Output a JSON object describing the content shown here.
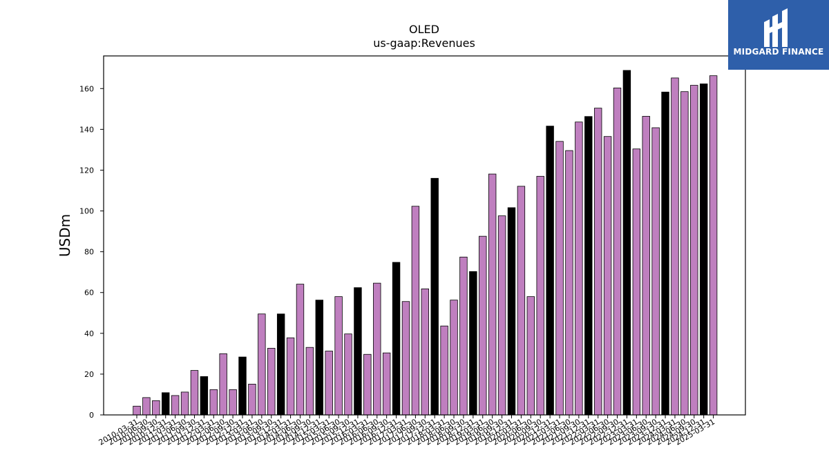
{
  "chart_data": {
    "type": "bar",
    "title": "OLED",
    "subtitle": "us-gaap:Revenues",
    "ylabel": "USDm",
    "xlabel": "",
    "ylim": [
      0,
      176
    ],
    "yticks": [
      0,
      20,
      40,
      60,
      80,
      100,
      120,
      140,
      160
    ],
    "grid": false,
    "colors": {
      "quarter": "#bf7fbf",
      "fiscal_year_end": "#000000",
      "edge": "#000000"
    },
    "categories": [
      "2010-03-31",
      "2010-06-30",
      "2010-09-30",
      "2010-12-31",
      "2011-03-31",
      "2011-06-30",
      "2011-09-30",
      "2011-12-31",
      "2012-03-31",
      "2012-06-30",
      "2012-09-30",
      "2012-12-31",
      "2013-03-31",
      "2013-06-30",
      "2013-09-30",
      "2013-12-31",
      "2014-03-31",
      "2014-06-30",
      "2014-09-30",
      "2014-12-31",
      "2015-03-31",
      "2015-06-30",
      "2015-09-30",
      "2015-12-31",
      "2016-03-31",
      "2016-06-30",
      "2016-09-30",
      "2016-12-31",
      "2017-03-31",
      "2017-06-30",
      "2017-09-30",
      "2017-12-31",
      "2018-03-31",
      "2018-06-30",
      "2018-09-30",
      "2018-12-31",
      "2019-03-31",
      "2019-06-30",
      "2019-09-30",
      "2019-12-31",
      "2020-03-31",
      "2020-06-30",
      "2020-09-30",
      "2020-12-31",
      "2021-03-31",
      "2021-06-30",
      "2021-09-30",
      "2021-12-31",
      "2022-03-31",
      "2022-06-30",
      "2022-09-30",
      "2022-12-31",
      "2023-03-31",
      "2023-06-30",
      "2023-09-30",
      "2023-12-31",
      "2024-03-31",
      "2024-06-30",
      "2024-09-30",
      "2024-12-31",
      "2025-03-31"
    ],
    "values": [
      4.3,
      8.5,
      7.0,
      10.9,
      9.5,
      11.2,
      21.8,
      18.8,
      12.4,
      30.0,
      12.4,
      28.4,
      15.1,
      49.5,
      32.7,
      49.5,
      37.8,
      64.1,
      33.1,
      56.3,
      31.3,
      58.0,
      39.7,
      62.4,
      29.7,
      64.6,
      30.4,
      74.8,
      55.6,
      102.3,
      61.8,
      116.0,
      43.6,
      56.3,
      77.4,
      70.3,
      87.6,
      118.1,
      97.6,
      101.6,
      112.1,
      58.0,
      117.0,
      141.6,
      134.1,
      129.6,
      143.6,
      146.3,
      150.4,
      136.5,
      160.3,
      168.9,
      130.4,
      146.4,
      140.8,
      158.3,
      165.2,
      158.5,
      161.6,
      162.3,
      166.3
    ],
    "fiscal_year_end_flags": [
      0,
      0,
      0,
      1,
      0,
      0,
      0,
      1,
      0,
      0,
      0,
      1,
      0,
      0,
      0,
      1,
      0,
      0,
      0,
      1,
      0,
      0,
      0,
      1,
      0,
      0,
      0,
      1,
      0,
      0,
      0,
      1,
      0,
      0,
      0,
      1,
      0,
      0,
      0,
      1,
      0,
      0,
      0,
      1,
      0,
      0,
      0,
      1,
      0,
      0,
      0,
      1,
      0,
      0,
      0,
      1,
      0,
      0,
      0,
      1,
      0
    ]
  },
  "logo": {
    "text": "MIDGARD FINANCE",
    "icon": "midgard-logo-icon",
    "color": "#2e5faa"
  }
}
